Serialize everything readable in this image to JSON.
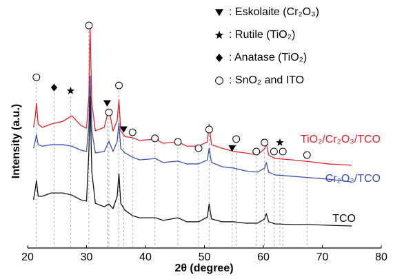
{
  "chart_data": {
    "type": "line",
    "xlabel": "2θ (degree)",
    "ylabel": "Intensity (a.u.)",
    "xlim": [
      20,
      80
    ],
    "xticks": [
      20,
      30,
      40,
      50,
      60,
      70,
      80
    ],
    "ylim": [
      0,
      100
    ],
    "x": [
      21,
      21.3,
      21.5,
      21.8,
      22.5,
      24,
      26,
      27.5,
      29,
      30,
      30.4,
      30.6,
      30.9,
      31.5,
      33,
      33.8,
      34.5,
      35.2,
      35.5,
      35.8,
      36.5,
      37.8,
      39,
      41.7,
      43,
      45.5,
      47,
      49,
      50.5,
      50.8,
      51.2,
      53,
      55,
      57,
      59,
      60.2,
      60.5,
      60.9,
      62,
      65,
      68,
      71,
      75
    ],
    "series": [
      {
        "name": "TiO₂/Cr₂O₃/TCO",
        "color": "#e8202a",
        "values": [
          51.5,
          55.9,
          61.8,
          52.9,
          51.5,
          52.9,
          54.1,
          56.5,
          52.4,
          51.2,
          64.7,
          94.7,
          61.8,
          50,
          51.5,
          59.4,
          50,
          54.4,
          63.2,
          50,
          47.6,
          47.1,
          45.9,
          46.5,
          44.7,
          45.3,
          43.5,
          43.5,
          45.3,
          52.9,
          44.1,
          42.6,
          41.2,
          40.6,
          39.7,
          42.4,
          44.7,
          39.7,
          38.2,
          37.6,
          36.8,
          35.9,
          35.3
        ]
      },
      {
        "name": "Cr₂O₃/TCO",
        "color": "#3b4fb5",
        "values": [
          42.6,
          45.6,
          48.5,
          44.1,
          43.5,
          44.1,
          44.1,
          43.5,
          41.8,
          41.2,
          52.9,
          73.5,
          50,
          40.6,
          41.2,
          45.6,
          41.2,
          45.6,
          53.5,
          42.6,
          40.6,
          38.8,
          37.6,
          38.2,
          36.5,
          37.1,
          35.9,
          35.9,
          37.6,
          42.6,
          36.5,
          34.7,
          34.1,
          32.9,
          32.4,
          34.1,
          36.5,
          32.4,
          31.2,
          30.6,
          30,
          29.4,
          28.2
        ]
      },
      {
        "name": "TCO",
        "color": "#111111",
        "values": [
          20.6,
          25,
          28.8,
          22.1,
          22.1,
          23.5,
          23.5,
          22.6,
          20.6,
          20,
          41.2,
          64.7,
          32.4,
          19.1,
          17.6,
          18.8,
          16.8,
          22.1,
          31.8,
          19.1,
          16.2,
          13.8,
          12.9,
          12.9,
          11.8,
          12.9,
          11.2,
          11.2,
          13.2,
          18.8,
          12.4,
          11.2,
          11.2,
          10.6,
          10.6,
          12.4,
          14.7,
          11.2,
          10.3,
          10,
          10,
          9.7,
          9.4
        ]
      }
    ],
    "legend": [
      {
        "symbol": "triangle-down",
        "label": ": Eskolaite (Cr₂O₃)"
      },
      {
        "symbol": "star",
        "label": ": Rutile (TiO₂)"
      },
      {
        "symbol": "diamond",
        "label": ": Anatase (TiO₂)"
      },
      {
        "symbol": "circle-open",
        "label": ": SnO₂ and ITO"
      }
    ],
    "peak_markers": [
      {
        "phase": 3,
        "x": 21.5,
        "y": 72.9
      },
      {
        "phase": 2,
        "x": 24.5,
        "y": 68.5
      },
      {
        "phase": 1,
        "x": 27.3,
        "y": 67.1
      },
      {
        "phase": 3,
        "x": 30.4,
        "y": 95
      },
      {
        "phase": 0,
        "x": 33.5,
        "y": 61.8
      },
      {
        "phase": 3,
        "x": 33.8,
        "y": 57.9
      },
      {
        "phase": 3,
        "x": 35.5,
        "y": 69.4
      },
      {
        "phase": 0,
        "x": 36.3,
        "y": 50.6
      },
      {
        "phase": 3,
        "x": 37.8,
        "y": 49.4
      },
      {
        "phase": 3,
        "x": 41.6,
        "y": 46.8
      },
      {
        "phase": 3,
        "x": 45.5,
        "y": 45.3
      },
      {
        "phase": 3,
        "x": 49,
        "y": 42.6
      },
      {
        "phase": 3,
        "x": 50.8,
        "y": 50.6
      },
      {
        "phase": 0,
        "x": 54.7,
        "y": 42.6
      },
      {
        "phase": 3,
        "x": 55.4,
        "y": 46.5
      },
      {
        "phase": 3,
        "x": 58.8,
        "y": 41.2
      },
      {
        "phase": 3,
        "x": 60.2,
        "y": 45
      },
      {
        "phase": 3,
        "x": 61.8,
        "y": 41.2
      },
      {
        "phase": 1,
        "x": 62.8,
        "y": 45
      },
      {
        "phase": 3,
        "x": 63.3,
        "y": 41.2
      },
      {
        "phase": 3,
        "x": 67.4,
        "y": 39.7
      }
    ]
  }
}
